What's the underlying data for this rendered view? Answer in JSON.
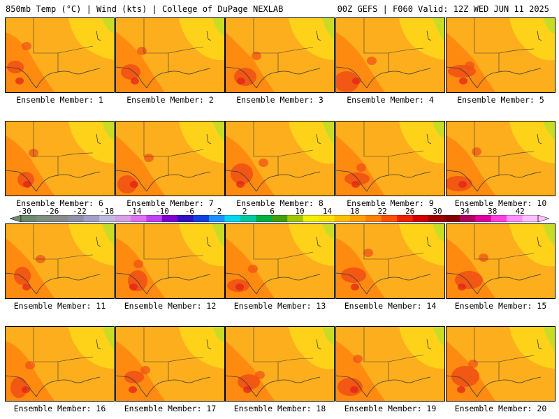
{
  "header": {
    "left": "850mb Temp (°C) | Wind (kts) | College of DuPage NEXLAB",
    "right": "00Z GEFS | F060 Valid: 12Z WED JUN 11 2025"
  },
  "panels": [
    {
      "label": "Ensemble Member: 1"
    },
    {
      "label": "Ensemble Member: 2"
    },
    {
      "label": "Ensemble Member: 3"
    },
    {
      "label": "Ensemble Member: 4"
    },
    {
      "label": "Ensemble Member: 5"
    },
    {
      "label": "Ensemble Member: 6"
    },
    {
      "label": "Ensemble Member: 7"
    },
    {
      "label": "Ensemble Member: 8"
    },
    {
      "label": "Ensemble Member: 9"
    },
    {
      "label": "Ensemble Member: 10"
    },
    {
      "label": "Ensemble Member: 11"
    },
    {
      "label": "Ensemble Member: 12"
    },
    {
      "label": "Ensemble Member: 13"
    },
    {
      "label": "Ensemble Member: 14"
    },
    {
      "label": "Ensemble Member: 15"
    },
    {
      "label": "Ensemble Member: 16"
    },
    {
      "label": "Ensemble Member: 17"
    },
    {
      "label": "Ensemble Member: 18"
    },
    {
      "label": "Ensemble Member: 19"
    },
    {
      "label": "Ensemble Member: 20"
    }
  ],
  "colorbar": {
    "ticks": [
      "-30",
      "-26",
      "-22",
      "-18",
      "-14",
      "-10",
      "-6",
      "-2",
      "2",
      "6",
      "10",
      "14",
      "18",
      "22",
      "26",
      "30",
      "34",
      "38",
      "42"
    ],
    "colors": [
      "#6e8a6e",
      "#7f8f7f",
      "#8a8a8a",
      "#8f8fa8",
      "#a0a0c8",
      "#bcbcdf",
      "#d8a0e8",
      "#e070f0",
      "#c040f0",
      "#8000d0",
      "#3010c0",
      "#1040e0",
      "#1e90ff",
      "#00d8f0",
      "#00c8a0",
      "#00b040",
      "#40a010",
      "#a0c800",
      "#f0f000",
      "#ffe000",
      "#ffc000",
      "#ffa000",
      "#ff8000",
      "#ff5000",
      "#f02000",
      "#d00000",
      "#a00000",
      "#800000",
      "#b00060",
      "#e000a0",
      "#ff40e0",
      "#ff90ff",
      "#ffc0ff"
    ]
  },
  "map_colors": {
    "base": "#fcae1c",
    "light": "#ffd21a",
    "warm": "#ff8a10",
    "hot": "#f04e14",
    "hottest": "#e01e18",
    "cool": "#c8dc26",
    "outline": "#3a3a3a"
  }
}
